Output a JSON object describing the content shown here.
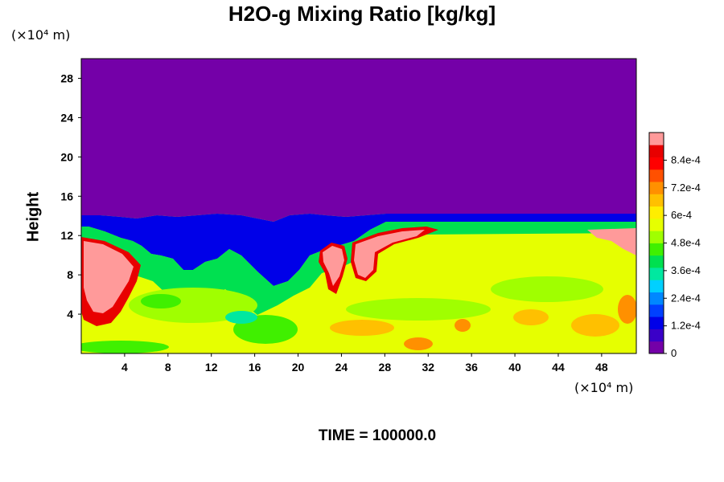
{
  "chart_data": {
    "type": "heatmap",
    "title": "H2O-g Mixing Ratio [kg/kg]",
    "ylabel": "Height",
    "x_unit": "(×10⁴ m)",
    "y_unit": "(×10⁴ m)",
    "x_ticks": [
      "4",
      "8",
      "12",
      "16",
      "20",
      "24",
      "28",
      "32",
      "36",
      "40",
      "44",
      "48"
    ],
    "y_ticks": [
      "4",
      "8",
      "12",
      "16",
      "20",
      "24",
      "28"
    ],
    "xlim": [
      0,
      51.2
    ],
    "ylim": [
      0,
      30
    ],
    "colorbar": {
      "labels": [
        "0",
        "1.2e-4",
        "2.4e-4",
        "3.6e-4",
        "4.8e-4",
        "6e-4",
        "7.2e-4",
        "8.4e-4"
      ],
      "min": 0,
      "max": 0.00096,
      "colors": [
        "#7400a8",
        "#3a00c8",
        "#0000e8",
        "#0040ff",
        "#0088ff",
        "#00d0ff",
        "#00e8a0",
        "#00e050",
        "#40f000",
        "#a0ff00",
        "#e6ff00",
        "#ffee00",
        "#ffc000",
        "#ff9000",
        "#ff5000",
        "#ff0000",
        "#e80000",
        "#ff9a9a"
      ]
    },
    "annotation": "TIME = 100000.0"
  }
}
